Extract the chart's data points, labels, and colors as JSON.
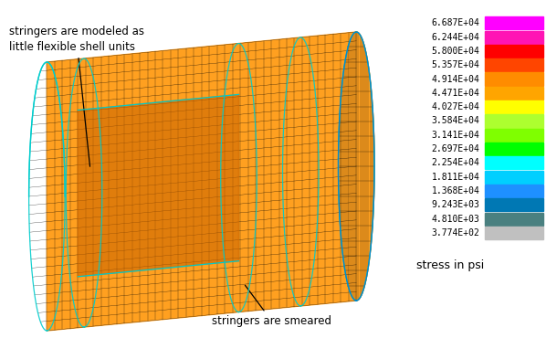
{
  "colorbar_labels": [
    "6.687E+04",
    "6.244E+04",
    "5.800E+04",
    "5.357E+04",
    "4.914E+04",
    "4.471E+04",
    "4.027E+04",
    "3.584E+04",
    "3.141E+04",
    "2.697E+04",
    "2.254E+04",
    "1.811E+04",
    "1.368E+04",
    "9.243E+03",
    "4.810E+03",
    "3.774E+02"
  ],
  "colorbar_colors": [
    "#FF00FF",
    "#FF14B4",
    "#FF0000",
    "#FF4500",
    "#FF8C00",
    "#FFA500",
    "#FFFF00",
    "#ADFF2F",
    "#7FFF00",
    "#00FF00",
    "#00FFFF",
    "#00CFFF",
    "#1E90FF",
    "#0078B4",
    "#4A8080",
    "#C0C0C0"
  ],
  "annotation1_text": "stringers are modeled as\nlittle flexible shell units",
  "annotation2_text": "stringers are smeared",
  "stress_label": "stress in psi",
  "bg": "#FFFFFF",
  "orange_main": "#FFA020",
  "orange_dark": "#CC6600",
  "orange_mid": "#E08010",
  "mesh_color": "#000000",
  "cyan_color": "#00CCCC",
  "blue_color": "#0088CC"
}
